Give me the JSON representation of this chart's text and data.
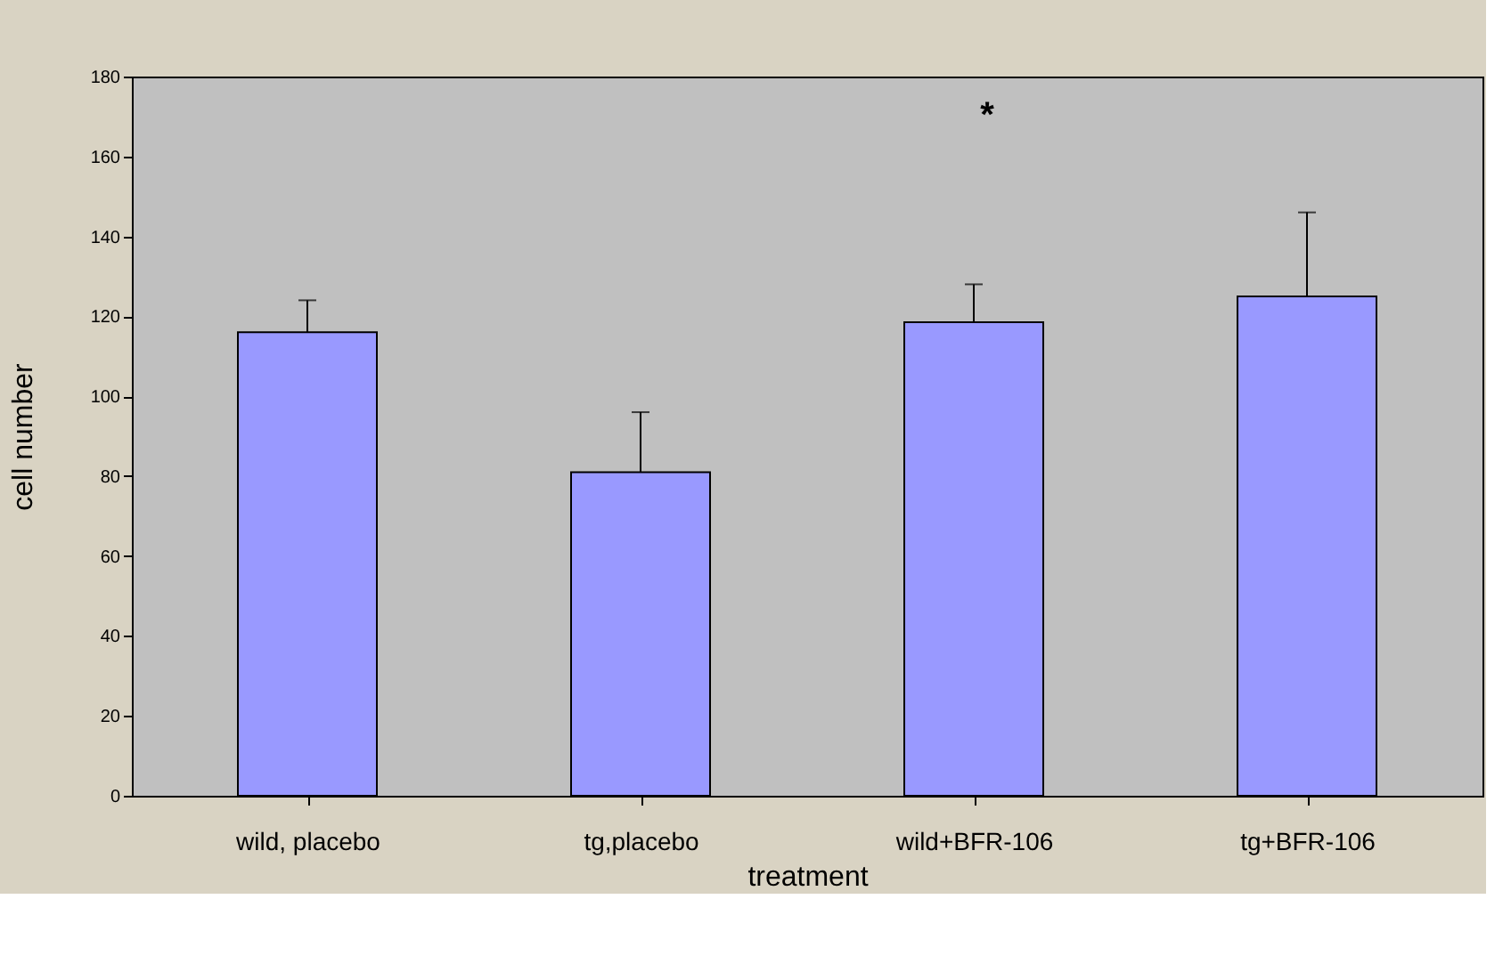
{
  "chart_data": {
    "type": "bar",
    "xlabel": "treatment",
    "ylabel": "cell number",
    "categories": [
      "wild, placebo",
      "tg,placebo",
      "wild+BFR-106",
      "tg+BFR-106"
    ],
    "values": [
      116,
      81,
      118.5,
      125
    ],
    "errors": [
      [
        116,
        124
      ],
      [
        81,
        96
      ],
      [
        118.5,
        128
      ],
      [
        125,
        146
      ]
    ],
    "color": "#9999ff",
    "ylim": [
      0,
      180
    ],
    "yticks": [
      0,
      20,
      40,
      60,
      80,
      100,
      120,
      140,
      160,
      180
    ],
    "grid": false,
    "annotations": [
      "*"
    ]
  }
}
